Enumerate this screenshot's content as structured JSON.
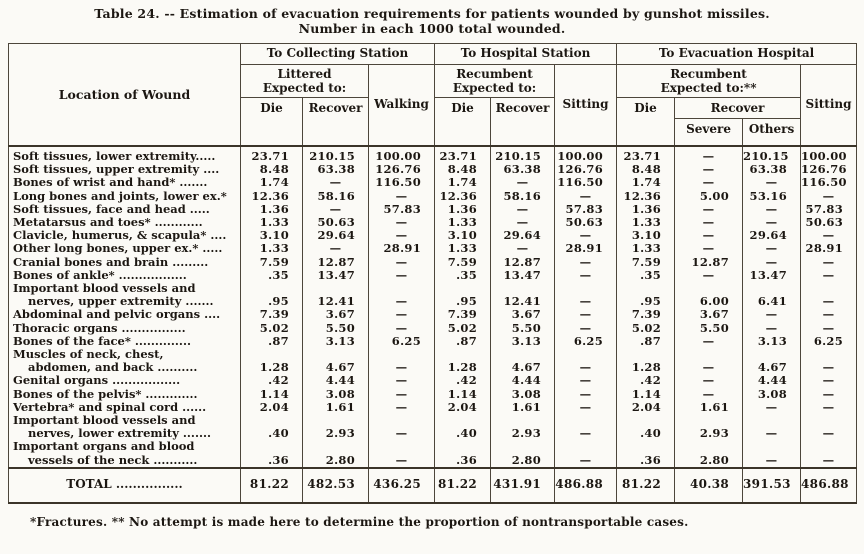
{
  "title_line1": "Table 24. -- Estimation of evacuation requirements for patients wounded by gunshot missiles.",
  "title_line2": "Number in each 1000 total wounded.",
  "header": {
    "location": "Location of Wound",
    "groups": [
      {
        "label": "To Collecting Station",
        "carry": "Littered",
        "expected": "Expected to:",
        "die": "Die",
        "recover": "Recover",
        "extra": "Walking"
      },
      {
        "label": "To Hospital Station",
        "carry": "Recumbent",
        "expected": "Expected to:",
        "die": "Die",
        "recover": "Recover",
        "extra": "Sitting"
      },
      {
        "label": "To Evacuation Hospital",
        "carry": "Recumbent",
        "expected": "Expected to:**",
        "die": "Die",
        "recover": "Recover",
        "severe": "Severe",
        "others": "Others",
        "extra": "Sitting"
      }
    ]
  },
  "rows": [
    {
      "label_lines": [
        "Soft tissues, lower extremity....."
      ],
      "values": [
        "23.71",
        "210.15",
        "100.00",
        "23.71",
        "210.15",
        "100.00",
        "23.71",
        "—",
        "210.15",
        "100.00"
      ]
    },
    {
      "label_lines": [
        "Soft tissues, upper extremity ...."
      ],
      "values": [
        "8.48",
        "63.38",
        "126.76",
        "8.48",
        "63.38",
        "126.76",
        "8.48",
        "—",
        "63.38",
        "126.76"
      ]
    },
    {
      "label_lines": [
        "Bones of wrist and hand* ......."
      ],
      "values": [
        "1.74",
        "—",
        "116.50",
        "1.74",
        "—",
        "116.50",
        "1.74",
        "—",
        "—",
        "116.50"
      ]
    },
    {
      "label_lines": [
        "Long bones and joints, lower ex.*"
      ],
      "values": [
        "12.36",
        "58.16",
        "—",
        "12.36",
        "58.16",
        "—",
        "12.36",
        "5.00",
        "53.16",
        "—"
      ]
    },
    {
      "label_lines": [
        "Soft tissues, face and head ....."
      ],
      "values": [
        "1.36",
        "—",
        "57.83",
        "1.36",
        "—",
        "57.83",
        "1.36",
        "—",
        "—",
        "57.83"
      ]
    },
    {
      "label_lines": [
        "Metatarsus and toes* ............"
      ],
      "values": [
        "1.33",
        "50.63",
        "—",
        "1.33",
        "—",
        "50.63",
        "1.33",
        "—",
        "—",
        "50.63"
      ]
    },
    {
      "label_lines": [
        "Clavicle, humerus, & scapula* ...."
      ],
      "values": [
        "3.10",
        "29.64",
        "—",
        "3.10",
        "29.64",
        "—",
        "3.10",
        "—",
        "29.64",
        "—"
      ]
    },
    {
      "label_lines": [
        "Other long bones, upper ex.* ....."
      ],
      "values": [
        "1.33",
        "—",
        "28.91",
        "1.33",
        "—",
        "28.91",
        "1.33",
        "—",
        "—",
        "28.91"
      ]
    },
    {
      "label_lines": [
        "Cranial bones and brain ........."
      ],
      "values": [
        "7.59",
        "12.87",
        "—",
        "7.59",
        "12.87",
        "—",
        "7.59",
        "12.87",
        "—",
        "—"
      ]
    },
    {
      "label_lines": [
        "Bones of ankle* ................."
      ],
      "values": [
        ".35",
        "13.47",
        "—",
        ".35",
        "13.47",
        "—",
        ".35",
        "—",
        "13.47",
        "—"
      ]
    },
    {
      "label_lines": [
        "Important blood vessels and",
        "nerves, upper extremity ......."
      ],
      "values": [
        ".95",
        "12.41",
        "—",
        ".95",
        "12.41",
        "—",
        ".95",
        "6.00",
        "6.41",
        "—"
      ]
    },
    {
      "label_lines": [
        "Abdominal and pelvic organs ...."
      ],
      "values": [
        "7.39",
        "3.67",
        "—",
        "7.39",
        "3.67",
        "—",
        "7.39",
        "3.67",
        "—",
        "—"
      ]
    },
    {
      "label_lines": [
        "Thoracic organs ................"
      ],
      "values": [
        "5.02",
        "5.50",
        "—",
        "5.02",
        "5.50",
        "—",
        "5.02",
        "5.50",
        "—",
        "—"
      ]
    },
    {
      "label_lines": [
        "Bones of the face* .............."
      ],
      "values": [
        ".87",
        "3.13",
        "6.25",
        ".87",
        "3.13",
        "6.25",
        ".87",
        "—",
        "3.13",
        "6.25"
      ]
    },
    {
      "label_lines": [
        "Muscles of neck, chest,",
        "abdomen, and back .........."
      ],
      "values": [
        "1.28",
        "4.67",
        "—",
        "1.28",
        "4.67",
        "—",
        "1.28",
        "—",
        "4.67",
        "—"
      ]
    },
    {
      "label_lines": [
        "Genital organs ................."
      ],
      "values": [
        ".42",
        "4.44",
        "—",
        ".42",
        "4.44",
        "—",
        ".42",
        "—",
        "4.44",
        "—"
      ]
    },
    {
      "label_lines": [
        "Bones of the pelvis* ............."
      ],
      "values": [
        "1.14",
        "3.08",
        "—",
        "1.14",
        "3.08",
        "—",
        "1.14",
        "—",
        "3.08",
        "—"
      ]
    },
    {
      "label_lines": [
        "Vertebra* and spinal cord ......"
      ],
      "values": [
        "2.04",
        "1.61",
        "—",
        "2.04",
        "1.61",
        "—",
        "2.04",
        "1.61",
        "—",
        "—"
      ]
    },
    {
      "label_lines": [
        "Important blood vessels and",
        "nerves, lower extremity ......."
      ],
      "values": [
        ".40",
        "2.93",
        "—",
        ".40",
        "2.93",
        "—",
        ".40",
        "2.93",
        "—",
        "—"
      ]
    },
    {
      "label_lines": [
        "Important organs and blood",
        "vessels of the neck ..........."
      ],
      "values": [
        ".36",
        "2.80",
        "—",
        ".36",
        "2.80",
        "—",
        ".36",
        "2.80",
        "—",
        "—"
      ]
    }
  ],
  "total": {
    "label": "TOTAL ................",
    "values": [
      "81.22",
      "482.53",
      "436.25",
      "81.22",
      "431.91",
      "486.88",
      "81.22",
      "40.38",
      "391.53",
      "486.88"
    ]
  },
  "footnote": "*Fractures.   ** No attempt is made here to determine the proportion of nontransportable cases."
}
